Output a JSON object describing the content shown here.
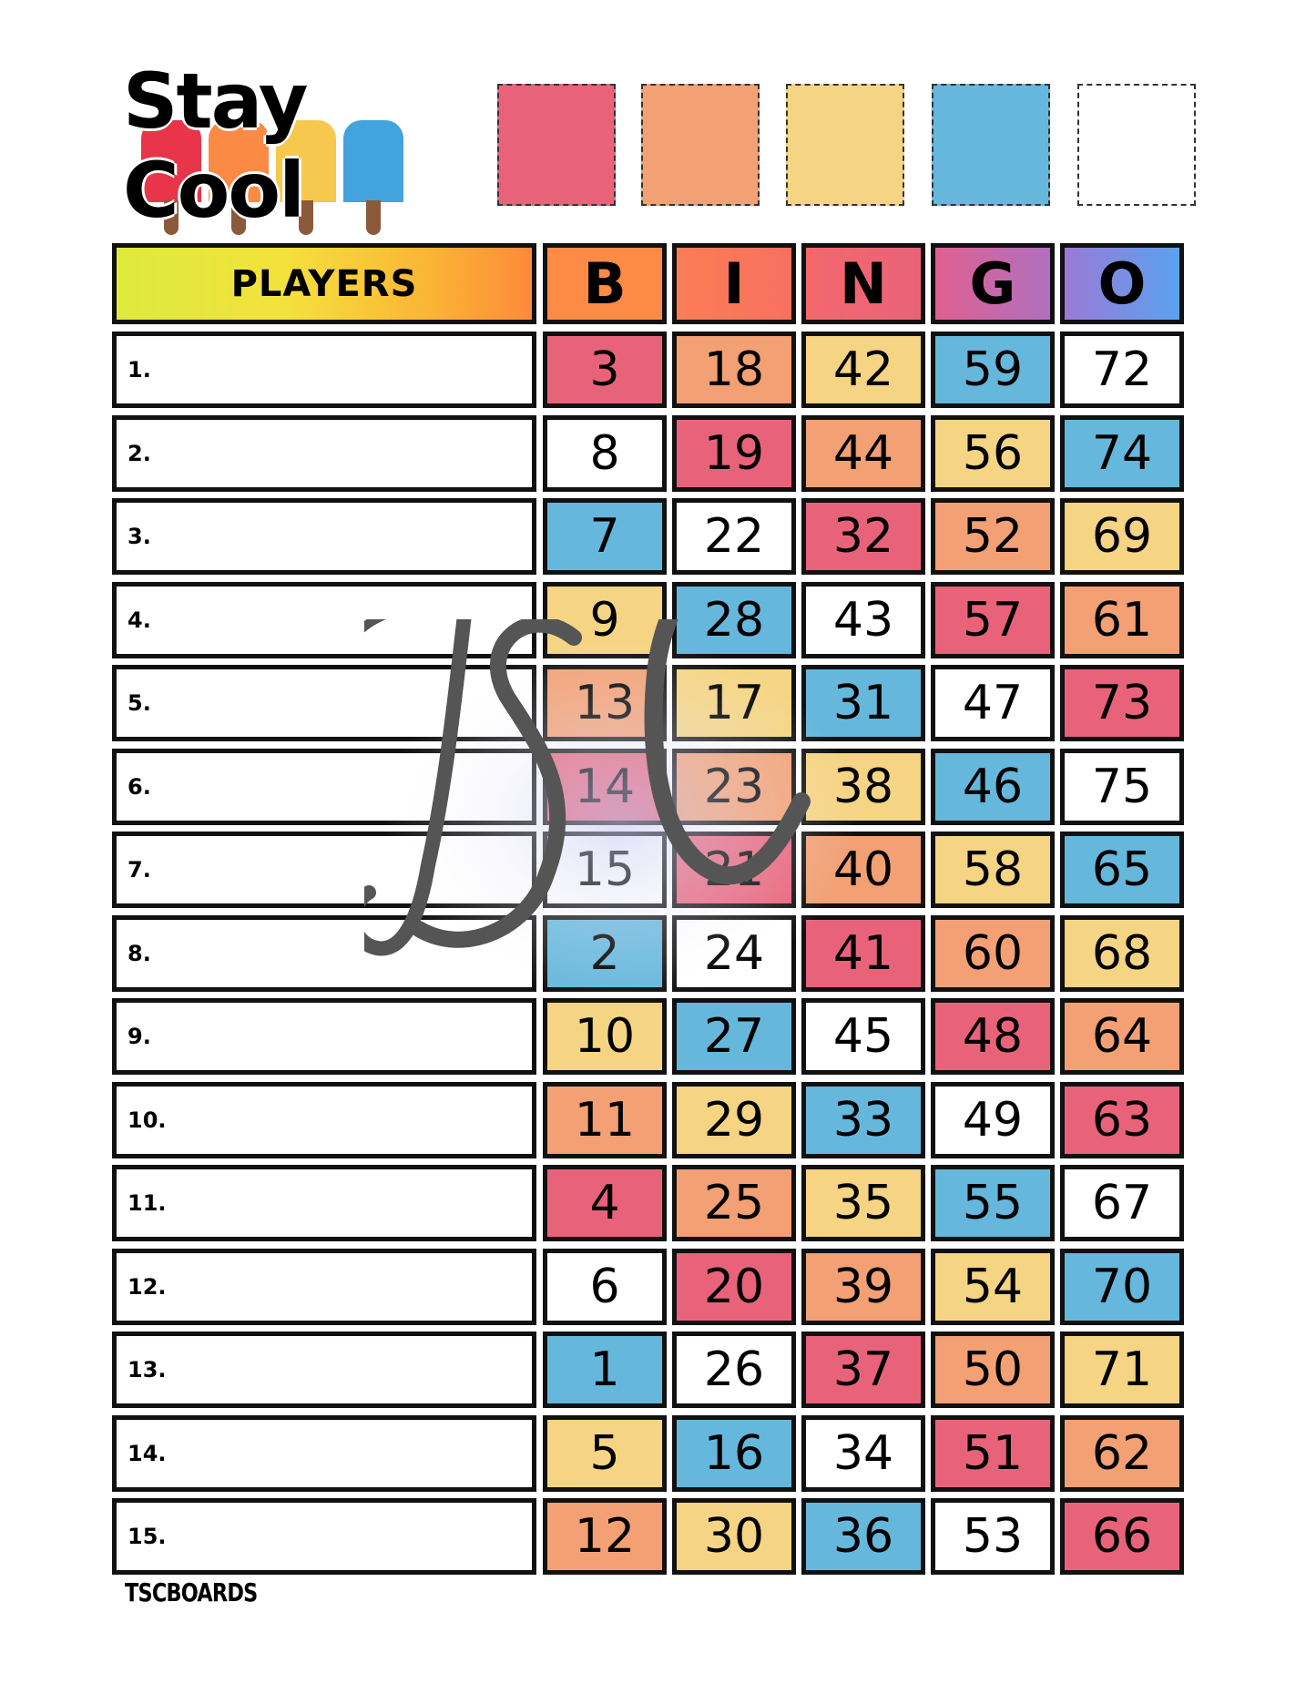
{
  "logo": {
    "title": "Stay Cool",
    "popsicle_colors": [
      "#e8354a",
      "#fb8a45",
      "#f6c94e",
      "#43a3dd"
    ]
  },
  "swatches": [
    "#e8637a",
    "#f2a074",
    "#f5d483",
    "#66b7dc",
    "#ffffff"
  ],
  "header": {
    "players_label": "PLAYERS",
    "letters": [
      "B",
      "I",
      "N",
      "G",
      "O"
    ],
    "letter_colors": [
      [
        "#fd8a45",
        "#fd8a45"
      ],
      [
        "#fb7d55",
        "#f8705f"
      ],
      [
        "#f4686c",
        "#e8637a"
      ],
      [
        "#e06090",
        "#b070c0"
      ],
      [
        "#9a7ad6",
        "#5aa2ef"
      ]
    ]
  },
  "colors": {
    "p": "#e8637a",
    "o": "#f2a074",
    "y": "#f5d483",
    "b": "#66b7dc",
    "w": "#ffffff"
  },
  "rows": [
    {
      "label": "1.",
      "numbers": [
        "3",
        "18",
        "42",
        "59",
        "72"
      ],
      "colors": [
        "p",
        "o",
        "y",
        "b",
        "w"
      ]
    },
    {
      "label": "2.",
      "numbers": [
        "8",
        "19",
        "44",
        "56",
        "74"
      ],
      "colors": [
        "w",
        "p",
        "o",
        "y",
        "b"
      ]
    },
    {
      "label": "3.",
      "numbers": [
        "7",
        "22",
        "32",
        "52",
        "69"
      ],
      "colors": [
        "b",
        "w",
        "p",
        "o",
        "y"
      ]
    },
    {
      "label": "4.",
      "numbers": [
        "9",
        "28",
        "43",
        "57",
        "61"
      ],
      "colors": [
        "y",
        "b",
        "w",
        "p",
        "o"
      ]
    },
    {
      "label": "5.",
      "numbers": [
        "13",
        "17",
        "31",
        "47",
        "73"
      ],
      "colors": [
        "o",
        "y",
        "b",
        "w",
        "p"
      ]
    },
    {
      "label": "6.",
      "numbers": [
        "14",
        "23",
        "38",
        "46",
        "75"
      ],
      "colors": [
        "p",
        "o",
        "y",
        "b",
        "w"
      ]
    },
    {
      "label": "7.",
      "numbers": [
        "15",
        "21",
        "40",
        "58",
        "65"
      ],
      "colors": [
        "w",
        "p",
        "o",
        "y",
        "b"
      ]
    },
    {
      "label": "8.",
      "numbers": [
        "2",
        "24",
        "41",
        "60",
        "68"
      ],
      "colors": [
        "b",
        "w",
        "p",
        "o",
        "y"
      ]
    },
    {
      "label": "9.",
      "numbers": [
        "10",
        "27",
        "45",
        "48",
        "64"
      ],
      "colors": [
        "y",
        "b",
        "w",
        "p",
        "o"
      ]
    },
    {
      "label": "10.",
      "numbers": [
        "11",
        "29",
        "33",
        "49",
        "63"
      ],
      "colors": [
        "o",
        "y",
        "b",
        "w",
        "p"
      ]
    },
    {
      "label": "11.",
      "numbers": [
        "4",
        "25",
        "35",
        "55",
        "67"
      ],
      "colors": [
        "p",
        "o",
        "y",
        "b",
        "w"
      ]
    },
    {
      "label": "12.",
      "numbers": [
        "6",
        "20",
        "39",
        "54",
        "70"
      ],
      "colors": [
        "w",
        "p",
        "o",
        "y",
        "b"
      ]
    },
    {
      "label": "13.",
      "numbers": [
        "1",
        "26",
        "37",
        "50",
        "71"
      ],
      "colors": [
        "b",
        "w",
        "p",
        "o",
        "y"
      ]
    },
    {
      "label": "14.",
      "numbers": [
        "5",
        "16",
        "34",
        "51",
        "62"
      ],
      "colors": [
        "y",
        "b",
        "w",
        "p",
        "o"
      ]
    },
    {
      "label": "15.",
      "numbers": [
        "12",
        "30",
        "36",
        "53",
        "66"
      ],
      "colors": [
        "o",
        "y",
        "b",
        "w",
        "p"
      ]
    }
  ],
  "footer": "TSCBOARDS",
  "watermark": "TSC"
}
